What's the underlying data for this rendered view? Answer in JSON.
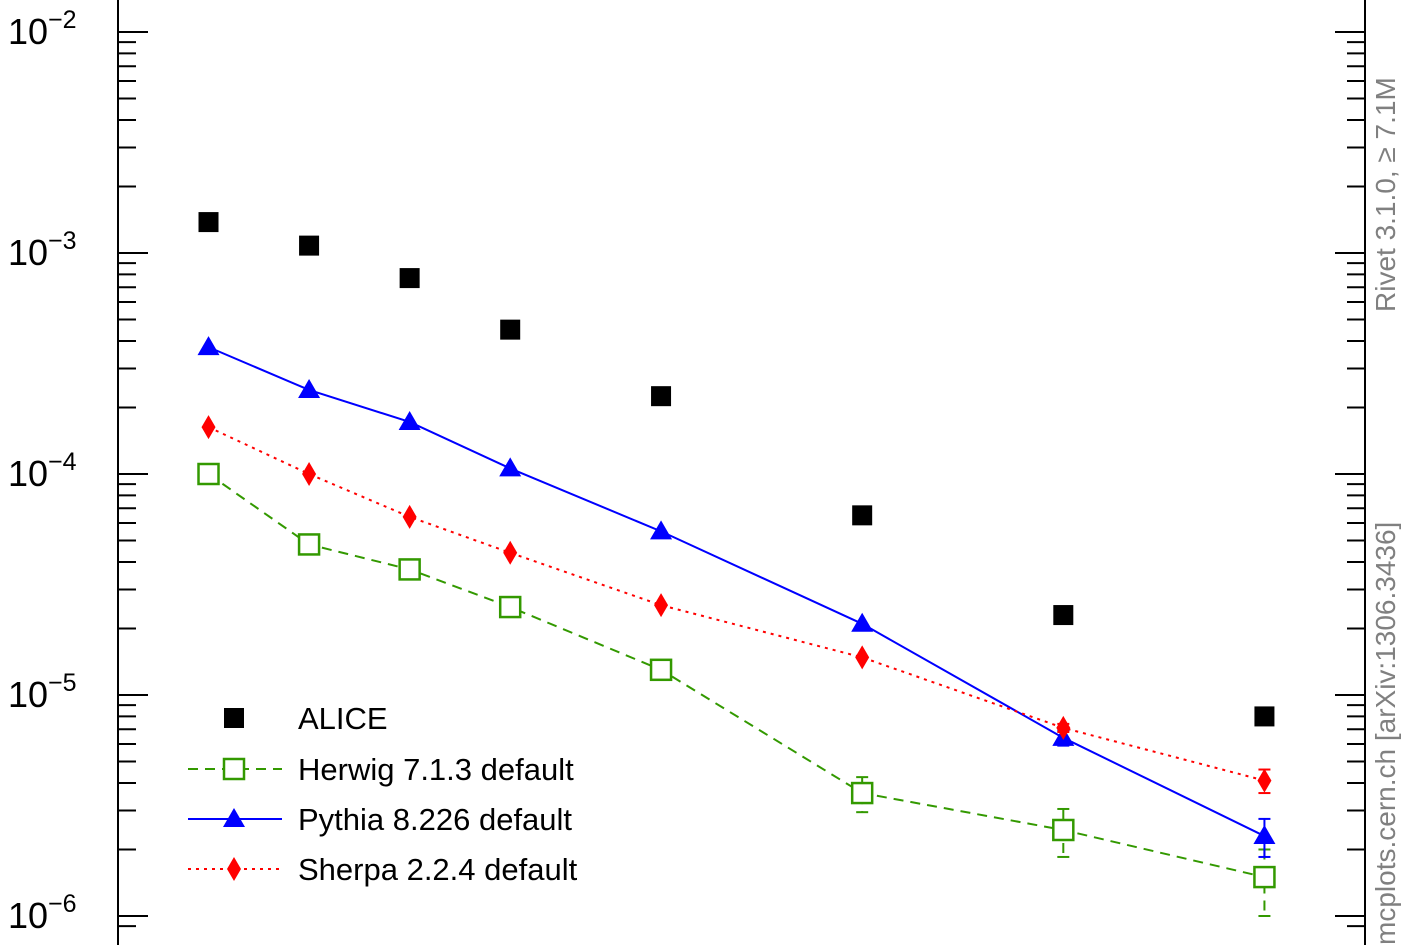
{
  "chart_data": {
    "type": "scatter",
    "x": [
      1,
      2,
      3,
      4,
      5.5,
      7.5,
      9.5,
      11.5
    ],
    "y_scale": "log",
    "ylim": [
      1e-06,
      0.01
    ],
    "xlim": [
      0.1,
      12.5
    ],
    "y_ticks": [
      {
        "value": 0.01,
        "base": "10",
        "exp": "−2"
      },
      {
        "value": 0.001,
        "base": "10",
        "exp": "−3"
      },
      {
        "value": 0.0001,
        "base": "10",
        "exp": "−4"
      },
      {
        "value": 1e-05,
        "base": "10",
        "exp": "−5"
      },
      {
        "value": 1e-06,
        "base": "10",
        "exp": "−6"
      }
    ],
    "grid": false,
    "legend_position": "bottom-left",
    "series": [
      {
        "name": "ALICE",
        "marker": "filled-square",
        "color": "#000000",
        "line": "none",
        "values": [
          0.00138,
          0.00108,
          0.00077,
          0.00045,
          0.000225,
          6.5e-05,
          2.3e-05,
          8e-06
        ],
        "err": [
          0,
          0,
          0,
          0,
          0,
          0,
          0,
          0
        ]
      },
      {
        "name": "Herwig 7.1.3 default",
        "marker": "open-square",
        "color": "#339900",
        "line": "dashed",
        "values": [
          0.0001,
          4.8e-05,
          3.7e-05,
          2.5e-05,
          1.3e-05,
          3.6e-06,
          2.45e-06,
          1.5e-06
        ],
        "err": [
          0,
          0,
          0,
          0,
          0,
          6.5e-07,
          6e-07,
          5e-07
        ]
      },
      {
        "name": "Pythia 8.226 default",
        "marker": "filled-triangle",
        "color": "#0000ff",
        "line": "solid",
        "values": [
          0.000375,
          0.00024,
          0.000172,
          0.000106,
          5.5e-05,
          2.1e-05,
          6.4e-06,
          2.3e-06
        ],
        "err": [
          0,
          0,
          0,
          0,
          0,
          0,
          5e-07,
          4.5e-07
        ]
      },
      {
        "name": "Sherpa 2.2.4 default",
        "marker": "filled-diamond",
        "color": "#ff0000",
        "line": "dotted",
        "values": [
          0.000163,
          0.0001,
          6.4e-05,
          4.4e-05,
          2.55e-05,
          1.48e-05,
          7.1e-06,
          4.1e-06
        ],
        "err": [
          0,
          0,
          0,
          0,
          0,
          0,
          3e-07,
          5e-07
        ]
      }
    ]
  },
  "side_text": {
    "top": "Rivet 3.1.0, ≥ 7.1M",
    "bottom": "mcplots.cern.ch [arXiv:1306.3436]"
  }
}
